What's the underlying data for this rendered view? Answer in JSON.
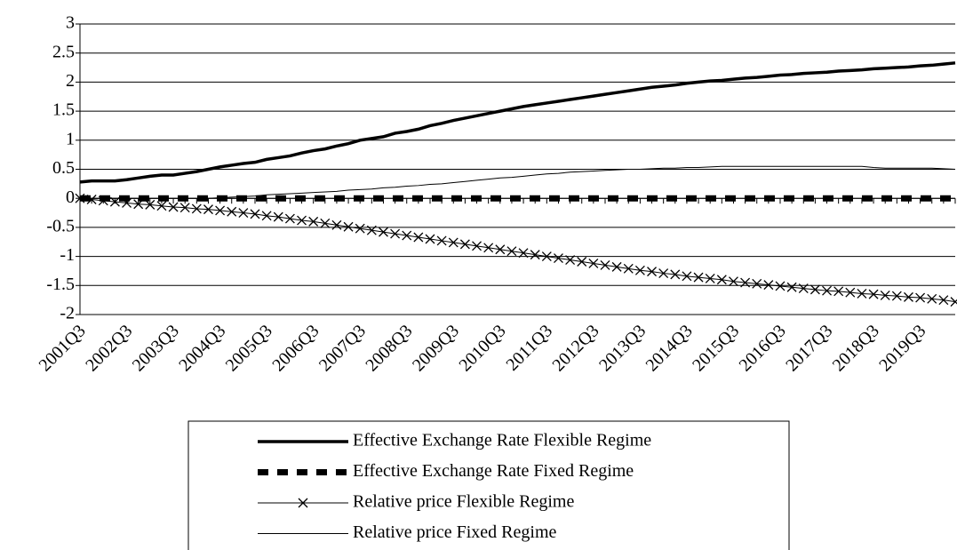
{
  "chart_data": {
    "type": "line",
    "categories": [
      "2001Q3",
      null,
      null,
      null,
      "2002Q3",
      null,
      null,
      null,
      "2003Q3",
      null,
      null,
      null,
      "2004Q3",
      null,
      null,
      null,
      "2005Q3",
      null,
      null,
      null,
      "2006Q3",
      null,
      null,
      null,
      "2007Q3",
      null,
      null,
      null,
      "2008Q3",
      null,
      null,
      null,
      "2009Q3",
      null,
      null,
      null,
      "2010Q3",
      null,
      null,
      null,
      "2011Q3",
      null,
      null,
      null,
      "2012Q3",
      null,
      null,
      null,
      "2013Q3",
      null,
      null,
      null,
      "2014Q3",
      null,
      null,
      null,
      "2015Q3",
      null,
      null,
      null,
      "2016Q3",
      null,
      null,
      null,
      "2017Q3",
      null,
      null,
      null,
      "2018Q3",
      null,
      null,
      null,
      "2019Q3",
      null,
      null,
      null
    ],
    "ylim": [
      -2,
      3
    ],
    "yticks": [
      -2,
      -1.5,
      -1,
      -0.5,
      0,
      0.5,
      1,
      1.5,
      2,
      2.5,
      3
    ],
    "grid": true,
    "series": [
      {
        "name": "Effective Exchange Rate Flexible Regime",
        "color": "#000000",
        "width": 3.5,
        "dash": "solid",
        "marker": "none",
        "values": [
          0.28,
          0.3,
          0.3,
          0.3,
          0.32,
          0.35,
          0.38,
          0.4,
          0.4,
          0.43,
          0.46,
          0.5,
          0.54,
          0.57,
          0.6,
          0.62,
          0.67,
          0.7,
          0.73,
          0.78,
          0.82,
          0.85,
          0.9,
          0.94,
          1.0,
          1.03,
          1.06,
          1.12,
          1.15,
          1.19,
          1.25,
          1.29,
          1.34,
          1.38,
          1.42,
          1.46,
          1.5,
          1.54,
          1.58,
          1.61,
          1.64,
          1.67,
          1.7,
          1.73,
          1.76,
          1.79,
          1.82,
          1.85,
          1.88,
          1.91,
          1.93,
          1.95,
          1.98,
          2.0,
          2.02,
          2.03,
          2.05,
          2.07,
          2.08,
          2.1,
          2.12,
          2.13,
          2.15,
          2.16,
          2.17,
          2.19,
          2.2,
          2.21,
          2.23,
          2.24,
          2.25,
          2.26,
          2.28,
          2.29,
          2.31,
          2.33
        ]
      },
      {
        "name": "Effective Exchange Rate Fixed Regime",
        "color": "#000000",
        "width": 7,
        "dash": "dashed",
        "marker": "none",
        "values": [
          0,
          0,
          0,
          0,
          0,
          0,
          0,
          0,
          0,
          0,
          0,
          0,
          0,
          0,
          0,
          0,
          0,
          0,
          0,
          0,
          0,
          0,
          0,
          0,
          0,
          0,
          0,
          0,
          0,
          0,
          0,
          0,
          0,
          0,
          0,
          0,
          0,
          0,
          0,
          0,
          0,
          0,
          0,
          0,
          0,
          0,
          0,
          0,
          0,
          0,
          0,
          0,
          0,
          0,
          0,
          0,
          0,
          0,
          0,
          0,
          0,
          0,
          0,
          0,
          0,
          0,
          0,
          0,
          0,
          0,
          0,
          0,
          0,
          0,
          0,
          0
        ]
      },
      {
        "name": "Relative price Flexible Regime",
        "color": "#000000",
        "width": 1,
        "dash": "solid",
        "marker": "x",
        "values": [
          0,
          -0.02,
          -0.04,
          -0.06,
          -0.08,
          -0.1,
          -0.11,
          -0.13,
          -0.15,
          -0.16,
          -0.18,
          -0.19,
          -0.21,
          -0.23,
          -0.25,
          -0.27,
          -0.3,
          -0.32,
          -0.35,
          -0.38,
          -0.4,
          -0.43,
          -0.46,
          -0.49,
          -0.52,
          -0.55,
          -0.58,
          -0.61,
          -0.64,
          -0.67,
          -0.7,
          -0.73,
          -0.76,
          -0.79,
          -0.82,
          -0.85,
          -0.88,
          -0.91,
          -0.94,
          -0.97,
          -1.0,
          -1.03,
          -1.06,
          -1.09,
          -1.12,
          -1.15,
          -1.18,
          -1.21,
          -1.24,
          -1.26,
          -1.29,
          -1.31,
          -1.34,
          -1.36,
          -1.38,
          -1.4,
          -1.43,
          -1.45,
          -1.47,
          -1.49,
          -1.51,
          -1.53,
          -1.55,
          -1.57,
          -1.59,
          -1.6,
          -1.62,
          -1.64,
          -1.65,
          -1.67,
          -1.68,
          -1.7,
          -1.71,
          -1.73,
          -1.75,
          -1.78
        ]
      },
      {
        "name": "Relative price Fixed Regime",
        "color": "#000000",
        "width": 1,
        "dash": "solid",
        "marker": "none",
        "values": [
          0,
          0,
          0,
          0,
          0,
          0,
          0,
          0,
          0,
          0,
          0,
          0,
          0.01,
          0.02,
          0.03,
          0.04,
          0.06,
          0.07,
          0.08,
          0.09,
          0.1,
          0.11,
          0.12,
          0.14,
          0.15,
          0.16,
          0.18,
          0.19,
          0.21,
          0.22,
          0.24,
          0.25,
          0.27,
          0.29,
          0.31,
          0.33,
          0.35,
          0.36,
          0.38,
          0.4,
          0.42,
          0.43,
          0.45,
          0.46,
          0.47,
          0.48,
          0.49,
          0.5,
          0.5,
          0.51,
          0.52,
          0.52,
          0.53,
          0.53,
          0.54,
          0.55,
          0.55,
          0.55,
          0.55,
          0.55,
          0.55,
          0.55,
          0.55,
          0.55,
          0.55,
          0.55,
          0.55,
          0.55,
          0.53,
          0.52,
          0.52,
          0.52,
          0.52,
          0.52,
          0.51,
          0.5
        ]
      }
    ]
  }
}
